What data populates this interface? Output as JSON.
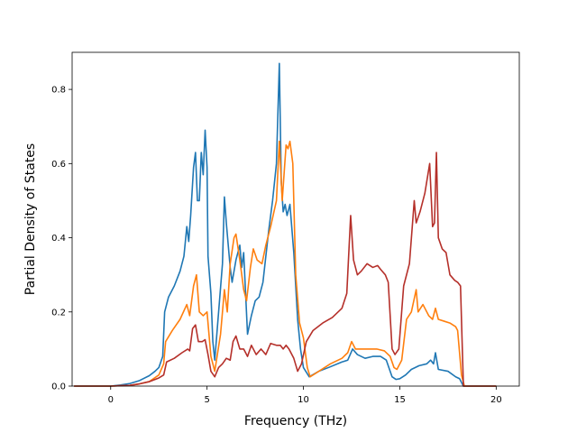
{
  "chart_data": {
    "type": "line",
    "title": "",
    "xlabel": "Frequency (THz)",
    "ylabel": "Partial Density of States",
    "xlim": [
      -2.0,
      21.2
    ],
    "ylim": [
      0.0,
      0.9
    ],
    "xticks": [
      0,
      5,
      10,
      15,
      20
    ],
    "yticks": [
      0.0,
      0.2,
      0.4,
      0.6,
      0.8
    ],
    "xtick_labels": [
      "0",
      "5",
      "10",
      "15",
      "20"
    ],
    "ytick_labels": [
      "0.0",
      "0.2",
      "0.4",
      "0.6",
      "0.8"
    ],
    "grid": false,
    "legend": "none",
    "series": [
      {
        "color": "#1f77b4",
        "points": [
          [
            -1.9,
            0
          ],
          [
            -0.5,
            0
          ],
          [
            0,
            0
          ],
          [
            0.5,
            0.003
          ],
          [
            1,
            0.007
          ],
          [
            1.5,
            0.015
          ],
          [
            2,
            0.028
          ],
          [
            2.3,
            0.04
          ],
          [
            2.5,
            0.05
          ],
          [
            2.7,
            0.08
          ],
          [
            2.8,
            0.2
          ],
          [
            3.0,
            0.24
          ],
          [
            3.3,
            0.27
          ],
          [
            3.6,
            0.31
          ],
          [
            3.8,
            0.35
          ],
          [
            3.95,
            0.43
          ],
          [
            4.05,
            0.39
          ],
          [
            4.15,
            0.46
          ],
          [
            4.3,
            0.59
          ],
          [
            4.4,
            0.63
          ],
          [
            4.5,
            0.5
          ],
          [
            4.6,
            0.5
          ],
          [
            4.7,
            0.63
          ],
          [
            4.8,
            0.57
          ],
          [
            4.9,
            0.69
          ],
          [
            5.0,
            0.59
          ],
          [
            5.05,
            0.35
          ],
          [
            5.2,
            0.25
          ],
          [
            5.3,
            0.12
          ],
          [
            5.4,
            0.07
          ],
          [
            5.6,
            0.2
          ],
          [
            5.8,
            0.33
          ],
          [
            5.9,
            0.51
          ],
          [
            6.0,
            0.44
          ],
          [
            6.2,
            0.32
          ],
          [
            6.3,
            0.28
          ],
          [
            6.5,
            0.34
          ],
          [
            6.7,
            0.38
          ],
          [
            6.8,
            0.32
          ],
          [
            6.9,
            0.36
          ],
          [
            7.1,
            0.14
          ],
          [
            7.3,
            0.19
          ],
          [
            7.5,
            0.23
          ],
          [
            7.7,
            0.24
          ],
          [
            7.9,
            0.28
          ],
          [
            8.2,
            0.42
          ],
          [
            8.4,
            0.5
          ],
          [
            8.6,
            0.6
          ],
          [
            8.75,
            0.87
          ],
          [
            8.85,
            0.55
          ],
          [
            8.95,
            0.47
          ],
          [
            9.05,
            0.49
          ],
          [
            9.15,
            0.46
          ],
          [
            9.3,
            0.49
          ],
          [
            9.5,
            0.36
          ],
          [
            9.7,
            0.18
          ],
          [
            9.85,
            0.1
          ],
          [
            10.0,
            0.05
          ],
          [
            10.3,
            0.025
          ],
          [
            10.8,
            0.04
          ],
          [
            11.3,
            0.05
          ],
          [
            12.0,
            0.065
          ],
          [
            12.3,
            0.07
          ],
          [
            12.55,
            0.1
          ],
          [
            12.8,
            0.085
          ],
          [
            13.2,
            0.075
          ],
          [
            13.6,
            0.08
          ],
          [
            14.0,
            0.08
          ],
          [
            14.3,
            0.07
          ],
          [
            14.6,
            0.025
          ],
          [
            14.8,
            0.018
          ],
          [
            15.0,
            0.02
          ],
          [
            15.3,
            0.03
          ],
          [
            15.6,
            0.045
          ],
          [
            16.0,
            0.055
          ],
          [
            16.4,
            0.06
          ],
          [
            16.6,
            0.07
          ],
          [
            16.75,
            0.06
          ],
          [
            16.85,
            0.09
          ],
          [
            17.0,
            0.045
          ],
          [
            17.5,
            0.04
          ],
          [
            17.9,
            0.025
          ],
          [
            18.1,
            0.02
          ],
          [
            18.3,
            0.0
          ],
          [
            19,
            0
          ],
          [
            20,
            0
          ]
        ]
      },
      {
        "color": "#ff7f0e",
        "points": [
          [
            -1.9,
            0
          ],
          [
            -0.5,
            0
          ],
          [
            0,
            0
          ],
          [
            1,
            0.002
          ],
          [
            1.5,
            0.006
          ],
          [
            2,
            0.012
          ],
          [
            2.5,
            0.03
          ],
          [
            2.75,
            0.06
          ],
          [
            2.85,
            0.12
          ],
          [
            3.2,
            0.15
          ],
          [
            3.6,
            0.18
          ],
          [
            3.95,
            0.22
          ],
          [
            4.1,
            0.19
          ],
          [
            4.3,
            0.27
          ],
          [
            4.45,
            0.3
          ],
          [
            4.6,
            0.2
          ],
          [
            4.8,
            0.19
          ],
          [
            5.0,
            0.2
          ],
          [
            5.2,
            0.08
          ],
          [
            5.4,
            0.04
          ],
          [
            5.7,
            0.14
          ],
          [
            5.9,
            0.26
          ],
          [
            6.05,
            0.2
          ],
          [
            6.2,
            0.33
          ],
          [
            6.4,
            0.4
          ],
          [
            6.5,
            0.41
          ],
          [
            6.7,
            0.34
          ],
          [
            6.9,
            0.26
          ],
          [
            7.05,
            0.23
          ],
          [
            7.25,
            0.32
          ],
          [
            7.4,
            0.37
          ],
          [
            7.6,
            0.34
          ],
          [
            7.85,
            0.33
          ],
          [
            8.05,
            0.38
          ],
          [
            8.3,
            0.43
          ],
          [
            8.6,
            0.5
          ],
          [
            8.75,
            0.66
          ],
          [
            8.9,
            0.5
          ],
          [
            9.1,
            0.65
          ],
          [
            9.2,
            0.64
          ],
          [
            9.3,
            0.66
          ],
          [
            9.45,
            0.6
          ],
          [
            9.6,
            0.3
          ],
          [
            9.8,
            0.17
          ],
          [
            10.0,
            0.13
          ],
          [
            10.2,
            0.05
          ],
          [
            10.35,
            0.025
          ],
          [
            10.8,
            0.04
          ],
          [
            11.4,
            0.06
          ],
          [
            12.0,
            0.075
          ],
          [
            12.3,
            0.09
          ],
          [
            12.5,
            0.12
          ],
          [
            12.7,
            0.1
          ],
          [
            13.2,
            0.1
          ],
          [
            13.8,
            0.1
          ],
          [
            14.2,
            0.095
          ],
          [
            14.5,
            0.08
          ],
          [
            14.7,
            0.05
          ],
          [
            14.85,
            0.045
          ],
          [
            15.1,
            0.07
          ],
          [
            15.35,
            0.18
          ],
          [
            15.6,
            0.2
          ],
          [
            15.85,
            0.26
          ],
          [
            15.95,
            0.2
          ],
          [
            16.2,
            0.22
          ],
          [
            16.5,
            0.19
          ],
          [
            16.7,
            0.18
          ],
          [
            16.85,
            0.21
          ],
          [
            17.0,
            0.18
          ],
          [
            17.3,
            0.175
          ],
          [
            17.6,
            0.17
          ],
          [
            17.9,
            0.16
          ],
          [
            18.0,
            0.15
          ],
          [
            18.2,
            0.03
          ],
          [
            18.35,
            0.0
          ],
          [
            19,
            0
          ],
          [
            20,
            0
          ]
        ]
      },
      {
        "color": "#b5302a",
        "points": [
          [
            -1.9,
            0
          ],
          [
            -0.5,
            0
          ],
          [
            0,
            0
          ],
          [
            1,
            0.002
          ],
          [
            1.5,
            0.006
          ],
          [
            2,
            0.012
          ],
          [
            2.5,
            0.022
          ],
          [
            2.75,
            0.03
          ],
          [
            2.9,
            0.065
          ],
          [
            3.3,
            0.075
          ],
          [
            3.7,
            0.09
          ],
          [
            4.0,
            0.1
          ],
          [
            4.1,
            0.095
          ],
          [
            4.25,
            0.155
          ],
          [
            4.4,
            0.165
          ],
          [
            4.55,
            0.12
          ],
          [
            4.75,
            0.12
          ],
          [
            4.9,
            0.125
          ],
          [
            5.05,
            0.085
          ],
          [
            5.2,
            0.04
          ],
          [
            5.4,
            0.025
          ],
          [
            5.6,
            0.05
          ],
          [
            5.8,
            0.06
          ],
          [
            6.0,
            0.075
          ],
          [
            6.2,
            0.07
          ],
          [
            6.35,
            0.12
          ],
          [
            6.5,
            0.135
          ],
          [
            6.7,
            0.1
          ],
          [
            6.9,
            0.1
          ],
          [
            7.1,
            0.08
          ],
          [
            7.3,
            0.11
          ],
          [
            7.55,
            0.085
          ],
          [
            7.8,
            0.1
          ],
          [
            8.05,
            0.085
          ],
          [
            8.3,
            0.115
          ],
          [
            8.6,
            0.11
          ],
          [
            8.8,
            0.11
          ],
          [
            8.95,
            0.1
          ],
          [
            9.1,
            0.11
          ],
          [
            9.25,
            0.1
          ],
          [
            9.5,
            0.075
          ],
          [
            9.7,
            0.04
          ],
          [
            9.9,
            0.06
          ],
          [
            10.15,
            0.12
          ],
          [
            10.5,
            0.15
          ],
          [
            11.0,
            0.17
          ],
          [
            11.5,
            0.185
          ],
          [
            12.0,
            0.21
          ],
          [
            12.25,
            0.25
          ],
          [
            12.45,
            0.46
          ],
          [
            12.6,
            0.34
          ],
          [
            12.8,
            0.3
          ],
          [
            13.0,
            0.31
          ],
          [
            13.3,
            0.33
          ],
          [
            13.6,
            0.32
          ],
          [
            13.85,
            0.325
          ],
          [
            14.0,
            0.315
          ],
          [
            14.25,
            0.3
          ],
          [
            14.4,
            0.28
          ],
          [
            14.6,
            0.1
          ],
          [
            14.75,
            0.085
          ],
          [
            14.95,
            0.1
          ],
          [
            15.2,
            0.27
          ],
          [
            15.5,
            0.33
          ],
          [
            15.75,
            0.5
          ],
          [
            15.85,
            0.44
          ],
          [
            16.05,
            0.47
          ],
          [
            16.3,
            0.52
          ],
          [
            16.55,
            0.6
          ],
          [
            16.7,
            0.43
          ],
          [
            16.8,
            0.44
          ],
          [
            16.9,
            0.63
          ],
          [
            17.0,
            0.4
          ],
          [
            17.2,
            0.37
          ],
          [
            17.4,
            0.36
          ],
          [
            17.6,
            0.3
          ],
          [
            17.85,
            0.285
          ],
          [
            18.0,
            0.28
          ],
          [
            18.15,
            0.27
          ],
          [
            18.3,
            0.0
          ],
          [
            19,
            0
          ],
          [
            20,
            0
          ]
        ]
      }
    ]
  }
}
